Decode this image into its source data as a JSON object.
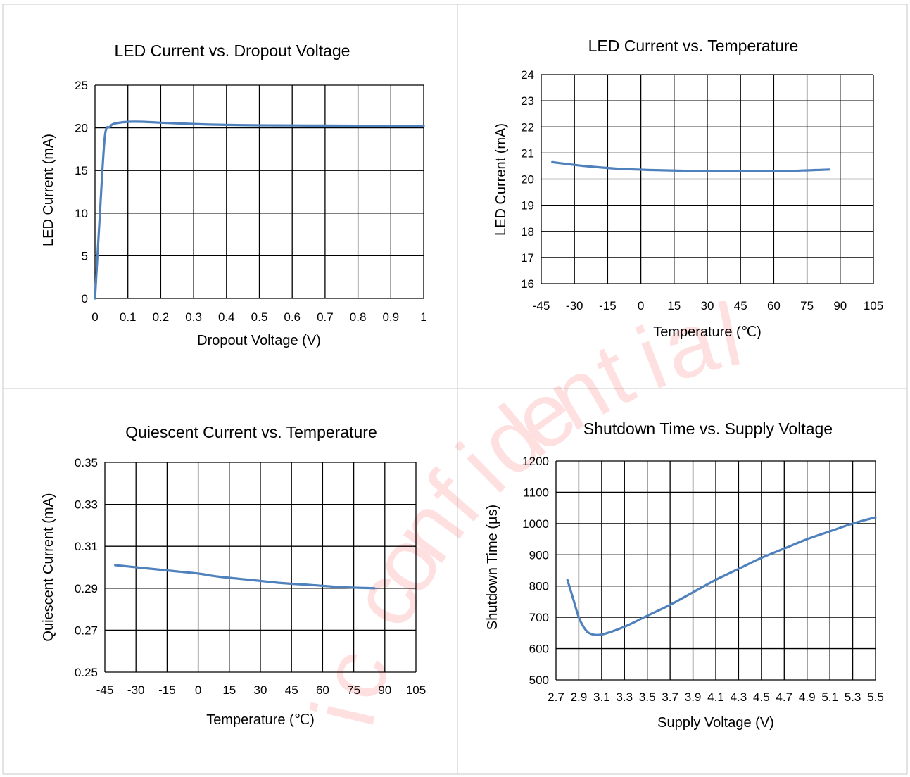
{
  "watermark": {
    "text": "ic confidential",
    "color": "#ff0000"
  },
  "colors": {
    "line": "#4f81bd",
    "grid": "#000000",
    "cell_border": "#c8c8c8"
  },
  "chart_data": [
    {
      "type": "line",
      "title": "LED Current vs. Dropout Voltage",
      "xlabel": "Dropout Voltage (V)",
      "ylabel": "LED Current (mA)",
      "xlim": [
        0,
        1
      ],
      "ylim": [
        0,
        25
      ],
      "xticks": [
        "0",
        "0.1",
        "0.2",
        "0.3",
        "0.4",
        "0.5",
        "0.6",
        "0.7",
        "0.8",
        "0.9",
        "1"
      ],
      "yticks": [
        "0",
        "5",
        "10",
        "15",
        "20",
        "25"
      ],
      "grid": true,
      "series": [
        {
          "x": [
            0,
            0.015,
            0.03,
            0.045,
            0.06,
            0.1,
            0.15,
            0.2,
            0.3,
            0.4,
            0.5,
            0.6,
            0.7,
            0.8,
            0.9,
            1.0
          ],
          "y": [
            0,
            10,
            19,
            20.1,
            20.5,
            20.7,
            20.7,
            20.6,
            20.45,
            20.35,
            20.3,
            20.28,
            20.26,
            20.25,
            20.24,
            20.24
          ]
        }
      ]
    },
    {
      "type": "line",
      "title": "LED Current vs. Temperature",
      "xlabel": "Temperature (℃)",
      "ylabel": "LED Current (mA)",
      "xlim": [
        -45,
        105
      ],
      "ylim": [
        16,
        24
      ],
      "xticks": [
        "-45",
        "-30",
        "-15",
        "0",
        "15",
        "30",
        "45",
        "60",
        "75",
        "90",
        "105"
      ],
      "yticks": [
        "16",
        "17",
        "18",
        "19",
        "20",
        "21",
        "22",
        "23",
        "24"
      ],
      "grid": true,
      "series": [
        {
          "x": [
            -40,
            -25,
            -10,
            5,
            20,
            35,
            50,
            65,
            85
          ],
          "y": [
            20.65,
            20.5,
            20.4,
            20.35,
            20.32,
            20.3,
            20.3,
            20.31,
            20.37
          ]
        }
      ]
    },
    {
      "type": "line",
      "title": "Quiescent Current vs. Temperature",
      "xlabel": "Temperature (℃)",
      "ylabel": "Quiescent Current (mA)",
      "xlim": [
        -45,
        105
      ],
      "ylim": [
        0.25,
        0.35
      ],
      "xticks": [
        "-45",
        "-30",
        "-15",
        "0",
        "15",
        "30",
        "45",
        "60",
        "75",
        "90",
        "105"
      ],
      "yticks": [
        "0.25",
        "0.27",
        "0.29",
        "0.31",
        "0.33",
        "0.35"
      ],
      "grid": true,
      "series": [
        {
          "x": [
            -40,
            -25,
            -10,
            0,
            10,
            25,
            40,
            55,
            70,
            85
          ],
          "y": [
            0.301,
            0.2995,
            0.298,
            0.297,
            0.2955,
            0.294,
            0.2925,
            0.2915,
            0.2905,
            0.29
          ]
        }
      ]
    },
    {
      "type": "line",
      "title": "Shutdown Time vs. Supply Voltage",
      "xlabel": "Supply Voltage (V)",
      "ylabel": "Shutdown Time (µs)",
      "xlim": [
        2.7,
        5.5
      ],
      "ylim": [
        500,
        1200
      ],
      "xticks": [
        "2.7",
        "2.9",
        "3.1",
        "3.3",
        "3.5",
        "3.7",
        "3.9",
        "4.1",
        "4.3",
        "4.5",
        "4.7",
        "4.9",
        "5.1",
        "5.3",
        "5.5"
      ],
      "yticks": [
        "500",
        "600",
        "700",
        "800",
        "900",
        "1000",
        "1100",
        "1200"
      ],
      "grid": true,
      "series": [
        {
          "x": [
            2.8,
            2.85,
            2.9,
            2.95,
            3.0,
            3.1,
            3.3,
            3.5,
            3.7,
            3.9,
            4.1,
            4.3,
            4.5,
            4.7,
            4.9,
            5.1,
            5.3,
            5.5
          ],
          "y": [
            820,
            760,
            700,
            665,
            648,
            645,
            670,
            705,
            740,
            780,
            820,
            855,
            890,
            920,
            950,
            975,
            1000,
            1020
          ]
        }
      ]
    }
  ]
}
